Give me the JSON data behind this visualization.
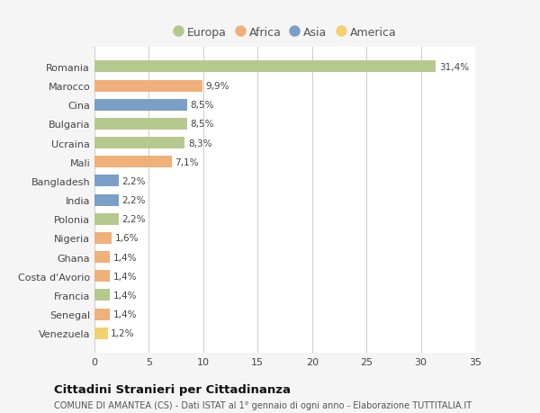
{
  "categories": [
    "Romania",
    "Marocco",
    "Cina",
    "Bulgaria",
    "Ucraina",
    "Mali",
    "Bangladesh",
    "India",
    "Polonia",
    "Nigeria",
    "Ghana",
    "Costa d'Avorio",
    "Francia",
    "Senegal",
    "Venezuela"
  ],
  "values": [
    31.4,
    9.9,
    8.5,
    8.5,
    8.3,
    7.1,
    2.2,
    2.2,
    2.2,
    1.6,
    1.4,
    1.4,
    1.4,
    1.4,
    1.2
  ],
  "labels": [
    "31,4%",
    "9,9%",
    "8,5%",
    "8,5%",
    "8,3%",
    "7,1%",
    "2,2%",
    "2,2%",
    "2,2%",
    "1,6%",
    "1,4%",
    "1,4%",
    "1,4%",
    "1,4%",
    "1,2%"
  ],
  "continents": [
    "Europa",
    "Africa",
    "Asia",
    "Europa",
    "Europa",
    "Africa",
    "Asia",
    "Asia",
    "Europa",
    "Africa",
    "Africa",
    "Africa",
    "Europa",
    "Africa",
    "America"
  ],
  "colors": {
    "Europa": "#b5c98e",
    "Africa": "#f0b07a",
    "Asia": "#7b9fc7",
    "America": "#f5d06e"
  },
  "legend_order": [
    "Europa",
    "Africa",
    "Asia",
    "America"
  ],
  "title": "Cittadini Stranieri per Cittadinanza",
  "subtitle": "COMUNE DI AMANTEA (CS) - Dati ISTAT al 1° gennaio di ogni anno - Elaborazione TUTTITALIA.IT",
  "xlim": [
    0,
    35
  ],
  "xticks": [
    0,
    5,
    10,
    15,
    20,
    25,
    30,
    35
  ],
  "bg_color": "#f5f5f5",
  "plot_bg_color": "#ffffff"
}
